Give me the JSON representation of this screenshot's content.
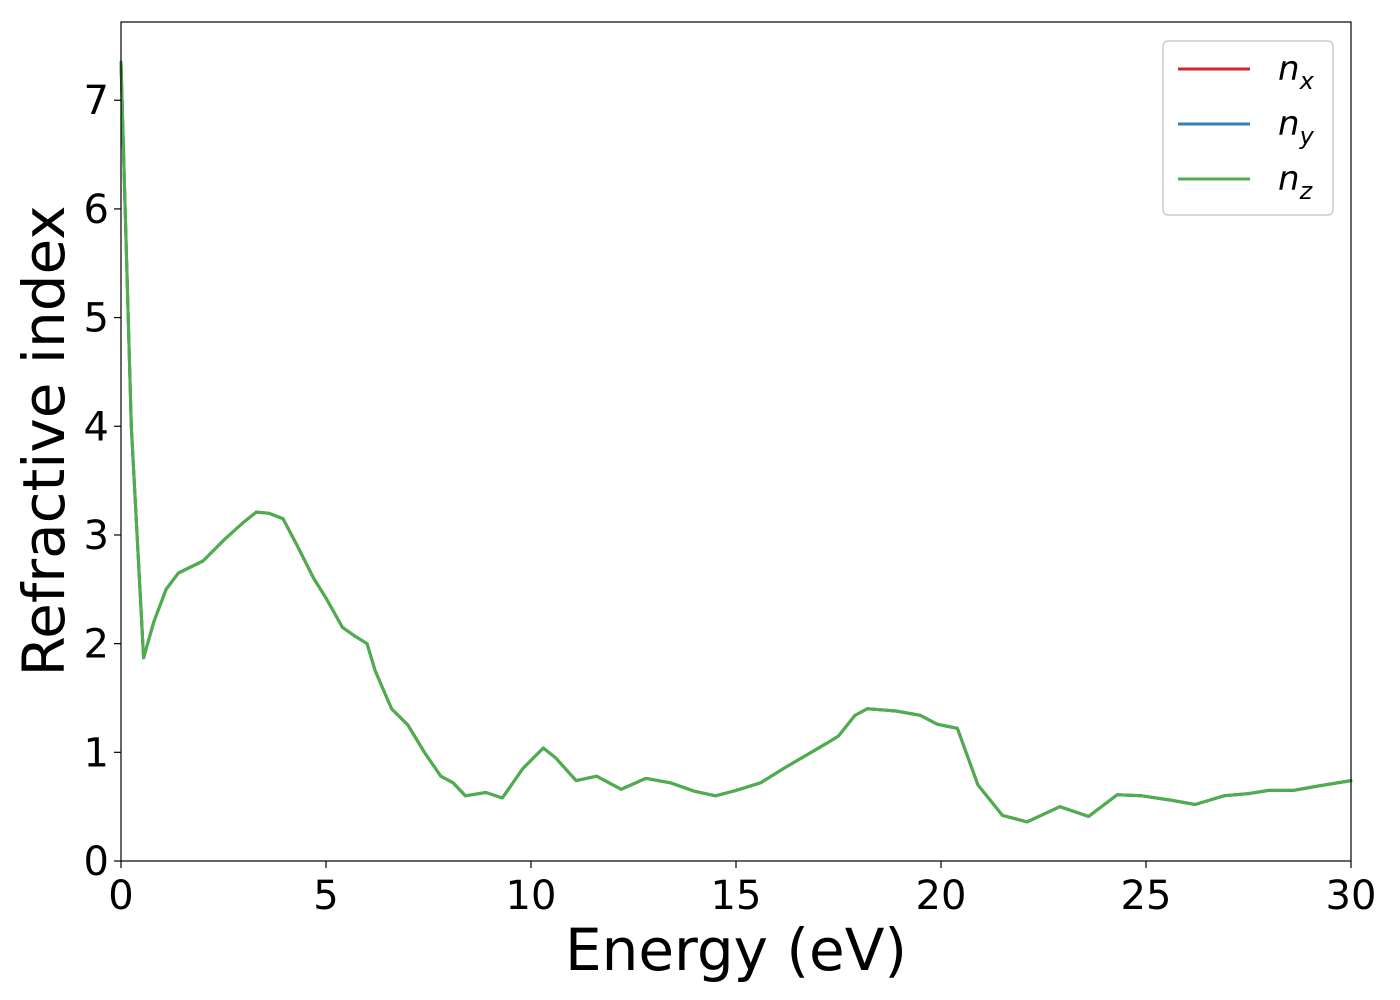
{
  "chart_data": {
    "type": "line",
    "title": "",
    "xlabel": "Energy (eV)",
    "ylabel": "Refractive index",
    "xlim": [
      0,
      30
    ],
    "ylim": [
      0,
      7.72
    ],
    "xticks": [
      "0",
      "5",
      "10",
      "15",
      "20",
      "25",
      "30"
    ],
    "yticks": [
      "0",
      "1",
      "2",
      "3",
      "4",
      "5",
      "6",
      "7"
    ],
    "grid": false,
    "legend_position": "top-right",
    "x": [
      0,
      0.25,
      0.55,
      0.8,
      1.1,
      1.4,
      2.0,
      2.5,
      3.0,
      3.3,
      3.6,
      3.95,
      4.3,
      4.7,
      5.0,
      5.4,
      5.7,
      6.0,
      6.2,
      6.6,
      7.0,
      7.4,
      7.8,
      8.1,
      8.4,
      8.9,
      9.3,
      9.8,
      10.3,
      10.6,
      11.1,
      11.6,
      12.2,
      12.8,
      13.4,
      14.0,
      14.5,
      15.0,
      15.6,
      16.2,
      16.7,
      17.2,
      17.5,
      17.9,
      18.2,
      18.9,
      19.5,
      19.9,
      20.4,
      20.9,
      21.5,
      22.1,
      22.9,
      23.6,
      24.3,
      24.9,
      25.6,
      26.2,
      26.9,
      27.5,
      28.0,
      28.6,
      29.2,
      30.0
    ],
    "series": [
      {
        "name": "n_x",
        "legend_main": "n",
        "legend_sub": "x",
        "color": "#d62728",
        "values": [
          7.35,
          4.0,
          1.87,
          2.2,
          2.5,
          2.65,
          2.76,
          2.95,
          3.12,
          3.21,
          3.2,
          3.15,
          2.9,
          2.6,
          2.42,
          2.15,
          2.07,
          2.0,
          1.75,
          1.4,
          1.25,
          1.0,
          0.78,
          0.72,
          0.6,
          0.63,
          0.58,
          0.85,
          1.04,
          0.95,
          0.74,
          0.78,
          0.66,
          0.76,
          0.72,
          0.64,
          0.6,
          0.65,
          0.72,
          0.86,
          0.97,
          1.08,
          1.15,
          1.34,
          1.4,
          1.38,
          1.34,
          1.26,
          1.22,
          0.7,
          0.42,
          0.36,
          0.5,
          0.41,
          0.61,
          0.6,
          0.56,
          0.52,
          0.6,
          0.62,
          0.65,
          0.65,
          0.69,
          0.74
        ]
      },
      {
        "name": "n_y",
        "legend_main": "n",
        "legend_sub": "y",
        "color": "#377eb8",
        "values": [
          7.35,
          4.0,
          1.87,
          2.2,
          2.5,
          2.65,
          2.76,
          2.95,
          3.12,
          3.21,
          3.2,
          3.15,
          2.9,
          2.6,
          2.42,
          2.15,
          2.07,
          2.0,
          1.75,
          1.4,
          1.25,
          1.0,
          0.78,
          0.72,
          0.6,
          0.63,
          0.58,
          0.85,
          1.04,
          0.95,
          0.74,
          0.78,
          0.66,
          0.76,
          0.72,
          0.64,
          0.6,
          0.65,
          0.72,
          0.86,
          0.97,
          1.08,
          1.15,
          1.34,
          1.4,
          1.38,
          1.34,
          1.26,
          1.22,
          0.7,
          0.42,
          0.36,
          0.5,
          0.41,
          0.61,
          0.6,
          0.56,
          0.52,
          0.6,
          0.62,
          0.65,
          0.65,
          0.69,
          0.74
        ]
      },
      {
        "name": "n_z",
        "legend_main": "n",
        "legend_sub": "z",
        "color": "#4daf4a",
        "values": [
          7.35,
          4.0,
          1.87,
          2.2,
          2.5,
          2.65,
          2.76,
          2.95,
          3.12,
          3.21,
          3.2,
          3.15,
          2.9,
          2.6,
          2.42,
          2.15,
          2.07,
          2.0,
          1.75,
          1.4,
          1.25,
          1.0,
          0.78,
          0.72,
          0.6,
          0.63,
          0.58,
          0.85,
          1.04,
          0.95,
          0.74,
          0.78,
          0.66,
          0.76,
          0.72,
          0.64,
          0.6,
          0.65,
          0.72,
          0.86,
          0.97,
          1.08,
          1.15,
          1.34,
          1.4,
          1.38,
          1.34,
          1.26,
          1.22,
          0.7,
          0.42,
          0.36,
          0.5,
          0.41,
          0.61,
          0.6,
          0.56,
          0.52,
          0.6,
          0.62,
          0.65,
          0.65,
          0.69,
          0.74
        ]
      }
    ]
  }
}
